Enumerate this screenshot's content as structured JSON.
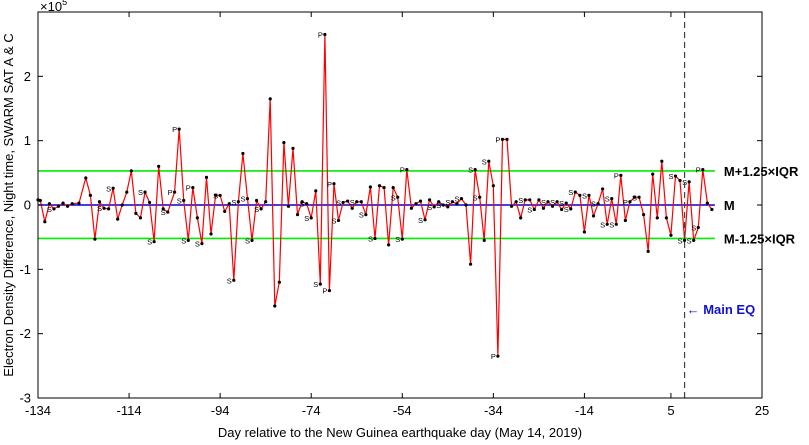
{
  "chart_data": {
    "type": "line",
    "xlabel": "Day relative to the New Guinea earthquake day (May 14, 2019)",
    "ylabel": "Electron Density Difference, Night time, SWARM SAT A & C",
    "exponent_label": "×10",
    "exponent_power": "5",
    "xlim": [
      -134,
      25
    ],
    "ylim": [
      -3,
      3
    ],
    "x_ticks": [
      -134,
      -114,
      -94,
      -74,
      -54,
      -34,
      -14,
      5,
      25
    ],
    "x_tick_labels": [
      "-134",
      "-114",
      "-94",
      "-74",
      "-54",
      "-34",
      "-14",
      "5",
      "25"
    ],
    "y_ticks": [
      -3,
      -2,
      -1,
      0,
      1,
      2
    ],
    "y_tick_labels": [
      "-3",
      "-2",
      "-1",
      "0",
      "1",
      "2"
    ],
    "grid": false,
    "series": [
      {
        "color": "#ff0000",
        "points": [
          [
            -134,
            0.08,
            ""
          ],
          [
            -133.5,
            0.07,
            ""
          ],
          [
            -132.5,
            -0.26,
            ""
          ],
          [
            -131.5,
            0.02,
            ""
          ],
          [
            -130.5,
            -0.06,
            "S"
          ],
          [
            -129.5,
            -0.02,
            ""
          ],
          [
            -128.5,
            0.03,
            ""
          ],
          [
            -127.5,
            -0.02,
            ""
          ],
          [
            -126.5,
            0.02,
            ""
          ],
          [
            -125,
            0.03,
            ""
          ],
          [
            -123.5,
            0.42,
            ""
          ],
          [
            -122.5,
            0.15,
            ""
          ],
          [
            -121.5,
            -0.53,
            ""
          ],
          [
            -120.5,
            0.05,
            ""
          ],
          [
            -119.5,
            -0.05,
            "S"
          ],
          [
            -118.5,
            -0.06,
            ""
          ],
          [
            -117.5,
            0.26,
            "S"
          ],
          [
            -116.5,
            -0.22,
            ""
          ],
          [
            -115.5,
            0.0,
            ""
          ],
          [
            -114.5,
            0.2,
            ""
          ],
          [
            -113.5,
            0.53,
            ""
          ],
          [
            -112.5,
            -0.13,
            ""
          ],
          [
            -111.5,
            -0.2,
            ""
          ],
          [
            -110.5,
            0.2,
            "S"
          ],
          [
            -109.5,
            0.04,
            ""
          ],
          [
            -108.5,
            -0.57,
            "S"
          ],
          [
            -107.5,
            0.6,
            ""
          ],
          [
            -106.5,
            -0.06,
            ""
          ],
          [
            -105.5,
            -0.11,
            "S"
          ],
          [
            -104,
            0.2,
            "P"
          ],
          [
            -103,
            1.18,
            "P"
          ],
          [
            -102,
            0.07,
            "S"
          ],
          [
            -101,
            -0.55,
            "S"
          ],
          [
            -100,
            0.27,
            "P"
          ],
          [
            -99,
            -0.2,
            ""
          ],
          [
            -98,
            -0.6,
            "S"
          ],
          [
            -97,
            0.43,
            ""
          ],
          [
            -96,
            -0.45,
            ""
          ],
          [
            -95,
            0.15,
            ""
          ],
          [
            -94,
            0.15,
            "S"
          ],
          [
            -93,
            -0.1,
            ""
          ],
          [
            -92,
            0.02,
            ""
          ],
          [
            -91,
            -1.17,
            "S"
          ],
          [
            -90,
            0.05,
            "S"
          ],
          [
            -89,
            0.8,
            ""
          ],
          [
            -88,
            0.1,
            "S"
          ],
          [
            -87,
            -0.55,
            "S"
          ],
          [
            -86,
            0.07,
            ""
          ],
          [
            -85,
            -0.06,
            "S"
          ],
          [
            -84,
            0.05,
            ""
          ],
          [
            -83,
            1.65,
            ""
          ],
          [
            -82,
            -1.57,
            ""
          ],
          [
            -81,
            -1.2,
            ""
          ],
          [
            -80,
            0.97,
            ""
          ],
          [
            -79,
            -0.02,
            ""
          ],
          [
            -78,
            0.88,
            ""
          ],
          [
            -77,
            -0.15,
            ""
          ],
          [
            -76,
            0.05,
            ""
          ],
          [
            -75,
            0.02,
            "S"
          ],
          [
            -74,
            -0.2,
            "S"
          ],
          [
            -73,
            0.22,
            ""
          ],
          [
            -72,
            -1.23,
            "S"
          ],
          [
            -71,
            2.65,
            "P"
          ],
          [
            -70,
            -1.33,
            "P"
          ],
          [
            -69,
            0.33,
            "P"
          ],
          [
            -68,
            -0.24,
            "S"
          ],
          [
            -67,
            0.04,
            "S"
          ],
          [
            -66,
            0.06,
            ""
          ],
          [
            -65,
            -0.05,
            ""
          ],
          [
            -64,
            0.05,
            "S"
          ],
          [
            -63,
            0.05,
            ""
          ],
          [
            -62,
            -0.15,
            "S"
          ],
          [
            -61,
            0.28,
            ""
          ],
          [
            -60,
            -0.52,
            "S"
          ],
          [
            -59,
            0.3,
            ""
          ],
          [
            -58,
            0.27,
            ""
          ],
          [
            -57,
            -0.62,
            ""
          ],
          [
            -56,
            0.27,
            ""
          ],
          [
            -55,
            0.12,
            "S"
          ],
          [
            -54,
            -0.53,
            "S"
          ],
          [
            -53,
            0.55,
            "P"
          ],
          [
            -52,
            -0.05,
            ""
          ],
          [
            -51,
            0.02,
            ""
          ],
          [
            -50,
            0.06,
            ""
          ],
          [
            -49,
            -0.23,
            "S"
          ],
          [
            -48,
            0.08,
            ""
          ],
          [
            -47,
            -0.03,
            "S"
          ],
          [
            -46,
            0.05,
            ""
          ],
          [
            -45,
            0.0,
            "S"
          ],
          [
            -44,
            -0.03,
            ""
          ],
          [
            -43,
            0.05,
            "S"
          ],
          [
            -42,
            0.02,
            ""
          ],
          [
            -41,
            0.1,
            "S"
          ],
          [
            -40,
            0.0,
            ""
          ],
          [
            -39,
            -0.92,
            ""
          ],
          [
            -38,
            0.55,
            "S"
          ],
          [
            -37,
            0.12,
            "S"
          ],
          [
            -36,
            -0.55,
            ""
          ],
          [
            -35,
            0.68,
            "S"
          ],
          [
            -34,
            0.3,
            ""
          ],
          [
            -33,
            -2.35,
            "P"
          ],
          [
            -32,
            1.02,
            "P"
          ],
          [
            -31,
            1.02,
            ""
          ],
          [
            -30,
            -0.02,
            ""
          ],
          [
            -29,
            0.05,
            ""
          ],
          [
            -28,
            -0.2,
            ""
          ],
          [
            -27,
            0.08,
            "S"
          ],
          [
            -26,
            0.08,
            ""
          ],
          [
            -25,
            -0.07,
            "S"
          ],
          [
            -24,
            0.08,
            ""
          ],
          [
            -23,
            -0.05,
            ""
          ],
          [
            -22,
            0.05,
            "S"
          ],
          [
            -21,
            -0.02,
            ""
          ],
          [
            -20,
            0.05,
            "S"
          ],
          [
            -19,
            -0.07,
            ""
          ],
          [
            -18,
            0.03,
            "S"
          ],
          [
            -17,
            -0.06,
            "S"
          ],
          [
            -16,
            0.2,
            "S"
          ],
          [
            -15,
            0.15,
            ""
          ],
          [
            -14,
            -0.42,
            ""
          ],
          [
            -13,
            0.15,
            "S"
          ],
          [
            -12,
            -0.17,
            ""
          ],
          [
            -11,
            0.02,
            "S"
          ],
          [
            -10,
            0.25,
            ""
          ],
          [
            -9,
            -0.3,
            "S"
          ],
          [
            -8,
            0.1,
            "S"
          ],
          [
            -7,
            -0.3,
            "S"
          ],
          [
            -6,
            0.46,
            "P"
          ],
          [
            -5,
            -0.24,
            ""
          ],
          [
            -4,
            0.05,
            "P"
          ],
          [
            -3,
            0.12,
            ""
          ],
          [
            -2,
            0.12,
            "S"
          ],
          [
            -1,
            -0.15,
            ""
          ],
          [
            0,
            -0.72,
            ""
          ],
          [
            1,
            0.48,
            ""
          ],
          [
            2,
            -0.2,
            ""
          ],
          [
            3,
            0.68,
            ""
          ],
          [
            4,
            -0.2,
            ""
          ],
          [
            5,
            -0.47,
            ""
          ],
          [
            6,
            0.45,
            "S"
          ],
          [
            7,
            0.38,
            ""
          ],
          [
            8,
            -0.55,
            "S"
          ],
          [
            9,
            0.36,
            "S"
          ],
          [
            10,
            -0.55,
            "S"
          ],
          [
            11,
            -0.35,
            "S"
          ],
          [
            12,
            0.55,
            "P"
          ],
          [
            13,
            0.03,
            ""
          ],
          [
            14,
            -0.07,
            ""
          ]
        ]
      }
    ],
    "reference_lines": [
      {
        "value": 0.53,
        "label": "M+1.25×IQR",
        "color": "#00ee00"
      },
      {
        "value": 0.0,
        "label": "M",
        "color": "#0000dd"
      },
      {
        "value": -0.52,
        "label": "M-1.25×IQR",
        "color": "#00ee00"
      }
    ],
    "event_line": {
      "x": 8,
      "label": "← Main EQ",
      "label_color": "#1010d0",
      "style": "dashed"
    }
  }
}
